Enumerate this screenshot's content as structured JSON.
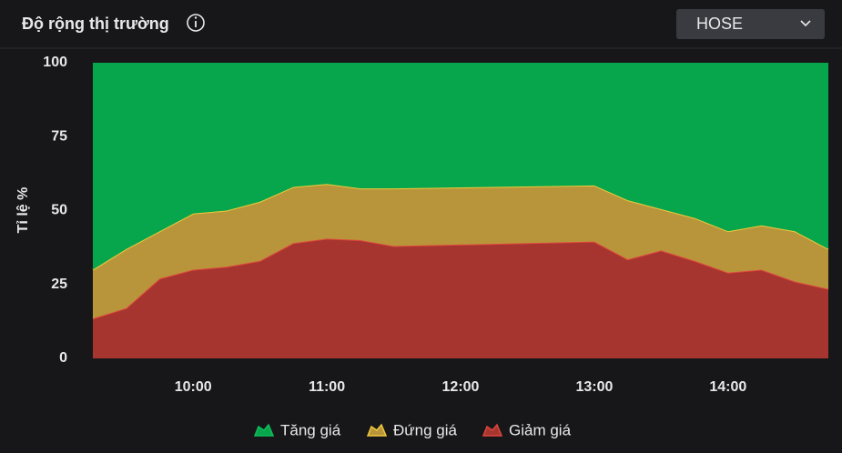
{
  "exchange_selector": "HOSE",
  "chart_data": {
    "type": "stacked-area",
    "title": "Độ rộng thị trường",
    "y_label": "Tỉ lệ %",
    "x": [
      555,
      570,
      585,
      600,
      615,
      630,
      645,
      660,
      675,
      690,
      780,
      795,
      810,
      825,
      840,
      855,
      870,
      885
    ],
    "xlim": [
      555,
      885
    ],
    "xticks": [
      {
        "value": 600,
        "label": "10:00"
      },
      {
        "value": 660,
        "label": "11:00"
      },
      {
        "value": 720,
        "label": "12:00"
      },
      {
        "value": 780,
        "label": "13:00"
      },
      {
        "value": 840,
        "label": "14:00"
      }
    ],
    "ylim": [
      0,
      100
    ],
    "yticks": [
      0,
      25,
      50,
      75,
      100
    ],
    "grid": false,
    "legend": "bottom",
    "series": [
      {
        "name": "Tăng giá",
        "color": "#07a54c",
        "line_color": "#0fbf5a",
        "values": [
          70,
          63,
          57,
          51,
          50,
          47,
          42,
          41,
          42.5,
          42.5,
          41.5,
          46.5,
          49.5,
          52.5,
          57,
          55,
          57,
          63
        ]
      },
      {
        "name": "Đứng giá",
        "color": "#b8953a",
        "line_color": "#f0c93c",
        "values": [
          16.5,
          20,
          16,
          19,
          19,
          20,
          19,
          18.5,
          17.5,
          19.5,
          19,
          20,
          14,
          14.5,
          14,
          15,
          17,
          13.5
        ]
      },
      {
        "name": "Giảm giá",
        "color": "#a63530",
        "line_color": "#e0453d",
        "values": [
          13.5,
          17,
          27,
          30,
          31,
          33,
          39,
          40.5,
          40,
          38,
          39.5,
          33.5,
          36.5,
          33,
          29,
          30,
          26,
          23.5
        ]
      }
    ]
  }
}
